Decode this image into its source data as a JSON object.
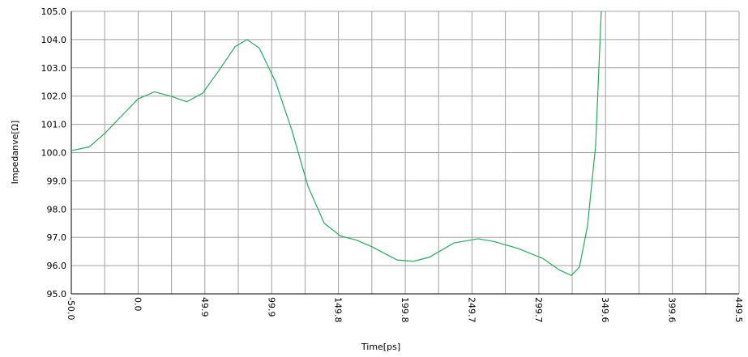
{
  "chart_data": {
    "type": "line",
    "x_label": "Time[ps]",
    "y_label": "Impedanve[Ω]",
    "x": [
      -50,
      -36.7,
      -24.5,
      -12.4,
      0,
      12.1,
      24.2,
      36.4,
      48.2,
      60.3,
      72.5,
      81.5,
      90.6,
      102.8,
      114.9,
      127.1,
      139.2,
      151.3,
      163.5,
      175.6,
      193.7,
      205.8,
      217.9,
      236.1,
      254.3,
      266.4,
      284.6,
      302.8,
      314.9,
      324.0,
      330.1,
      336.1,
      342.2,
      346.4
    ],
    "series": [
      {
        "color": "#1fae5a",
        "values": [
          100.07,
          100.2,
          100.7,
          101.3,
          101.9,
          102.15,
          102.0,
          101.8,
          102.1,
          102.9,
          103.75,
          104.0,
          103.7,
          102.5,
          100.8,
          98.8,
          97.5,
          97.05,
          96.9,
          96.65,
          96.2,
          96.15,
          96.3,
          96.8,
          96.95,
          96.85,
          96.6,
          96.25,
          95.85,
          95.65,
          95.95,
          97.4,
          100.25,
          105.0
        ]
      }
    ],
    "xlim": [
      -50,
      449.5
    ],
    "ylim": [
      95,
      105
    ],
    "xticks": [
      {
        "value": -50,
        "label": "-50.0"
      },
      {
        "value": 0,
        "label": "0.0"
      },
      49.9,
      99.9,
      149.8,
      199.8,
      249.7,
      299.7,
      349.6,
      399.6,
      449.5
    ],
    "x_minor_ticks": [
      -25.05,
      24.95,
      74.9,
      124.85,
      174.8,
      224.75,
      274.7,
      324.65,
      374.6,
      424.55
    ],
    "yticks": [
      {
        "value": 95,
        "label": "95.0"
      },
      {
        "value": 96,
        "label": "96.0"
      },
      {
        "value": 97,
        "label": "97.0"
      },
      {
        "value": 98,
        "label": "98.0"
      },
      {
        "value": 99,
        "label": "99.0"
      },
      {
        "value": 100,
        "label": "100.0"
      },
      {
        "value": 101,
        "label": "101.0"
      },
      {
        "value": 102,
        "label": "102.0"
      },
      {
        "value": 103,
        "label": "103.0"
      },
      {
        "value": 104,
        "label": "104.0"
      },
      {
        "value": 105,
        "label": "105.0"
      }
    ],
    "grid": true
  }
}
